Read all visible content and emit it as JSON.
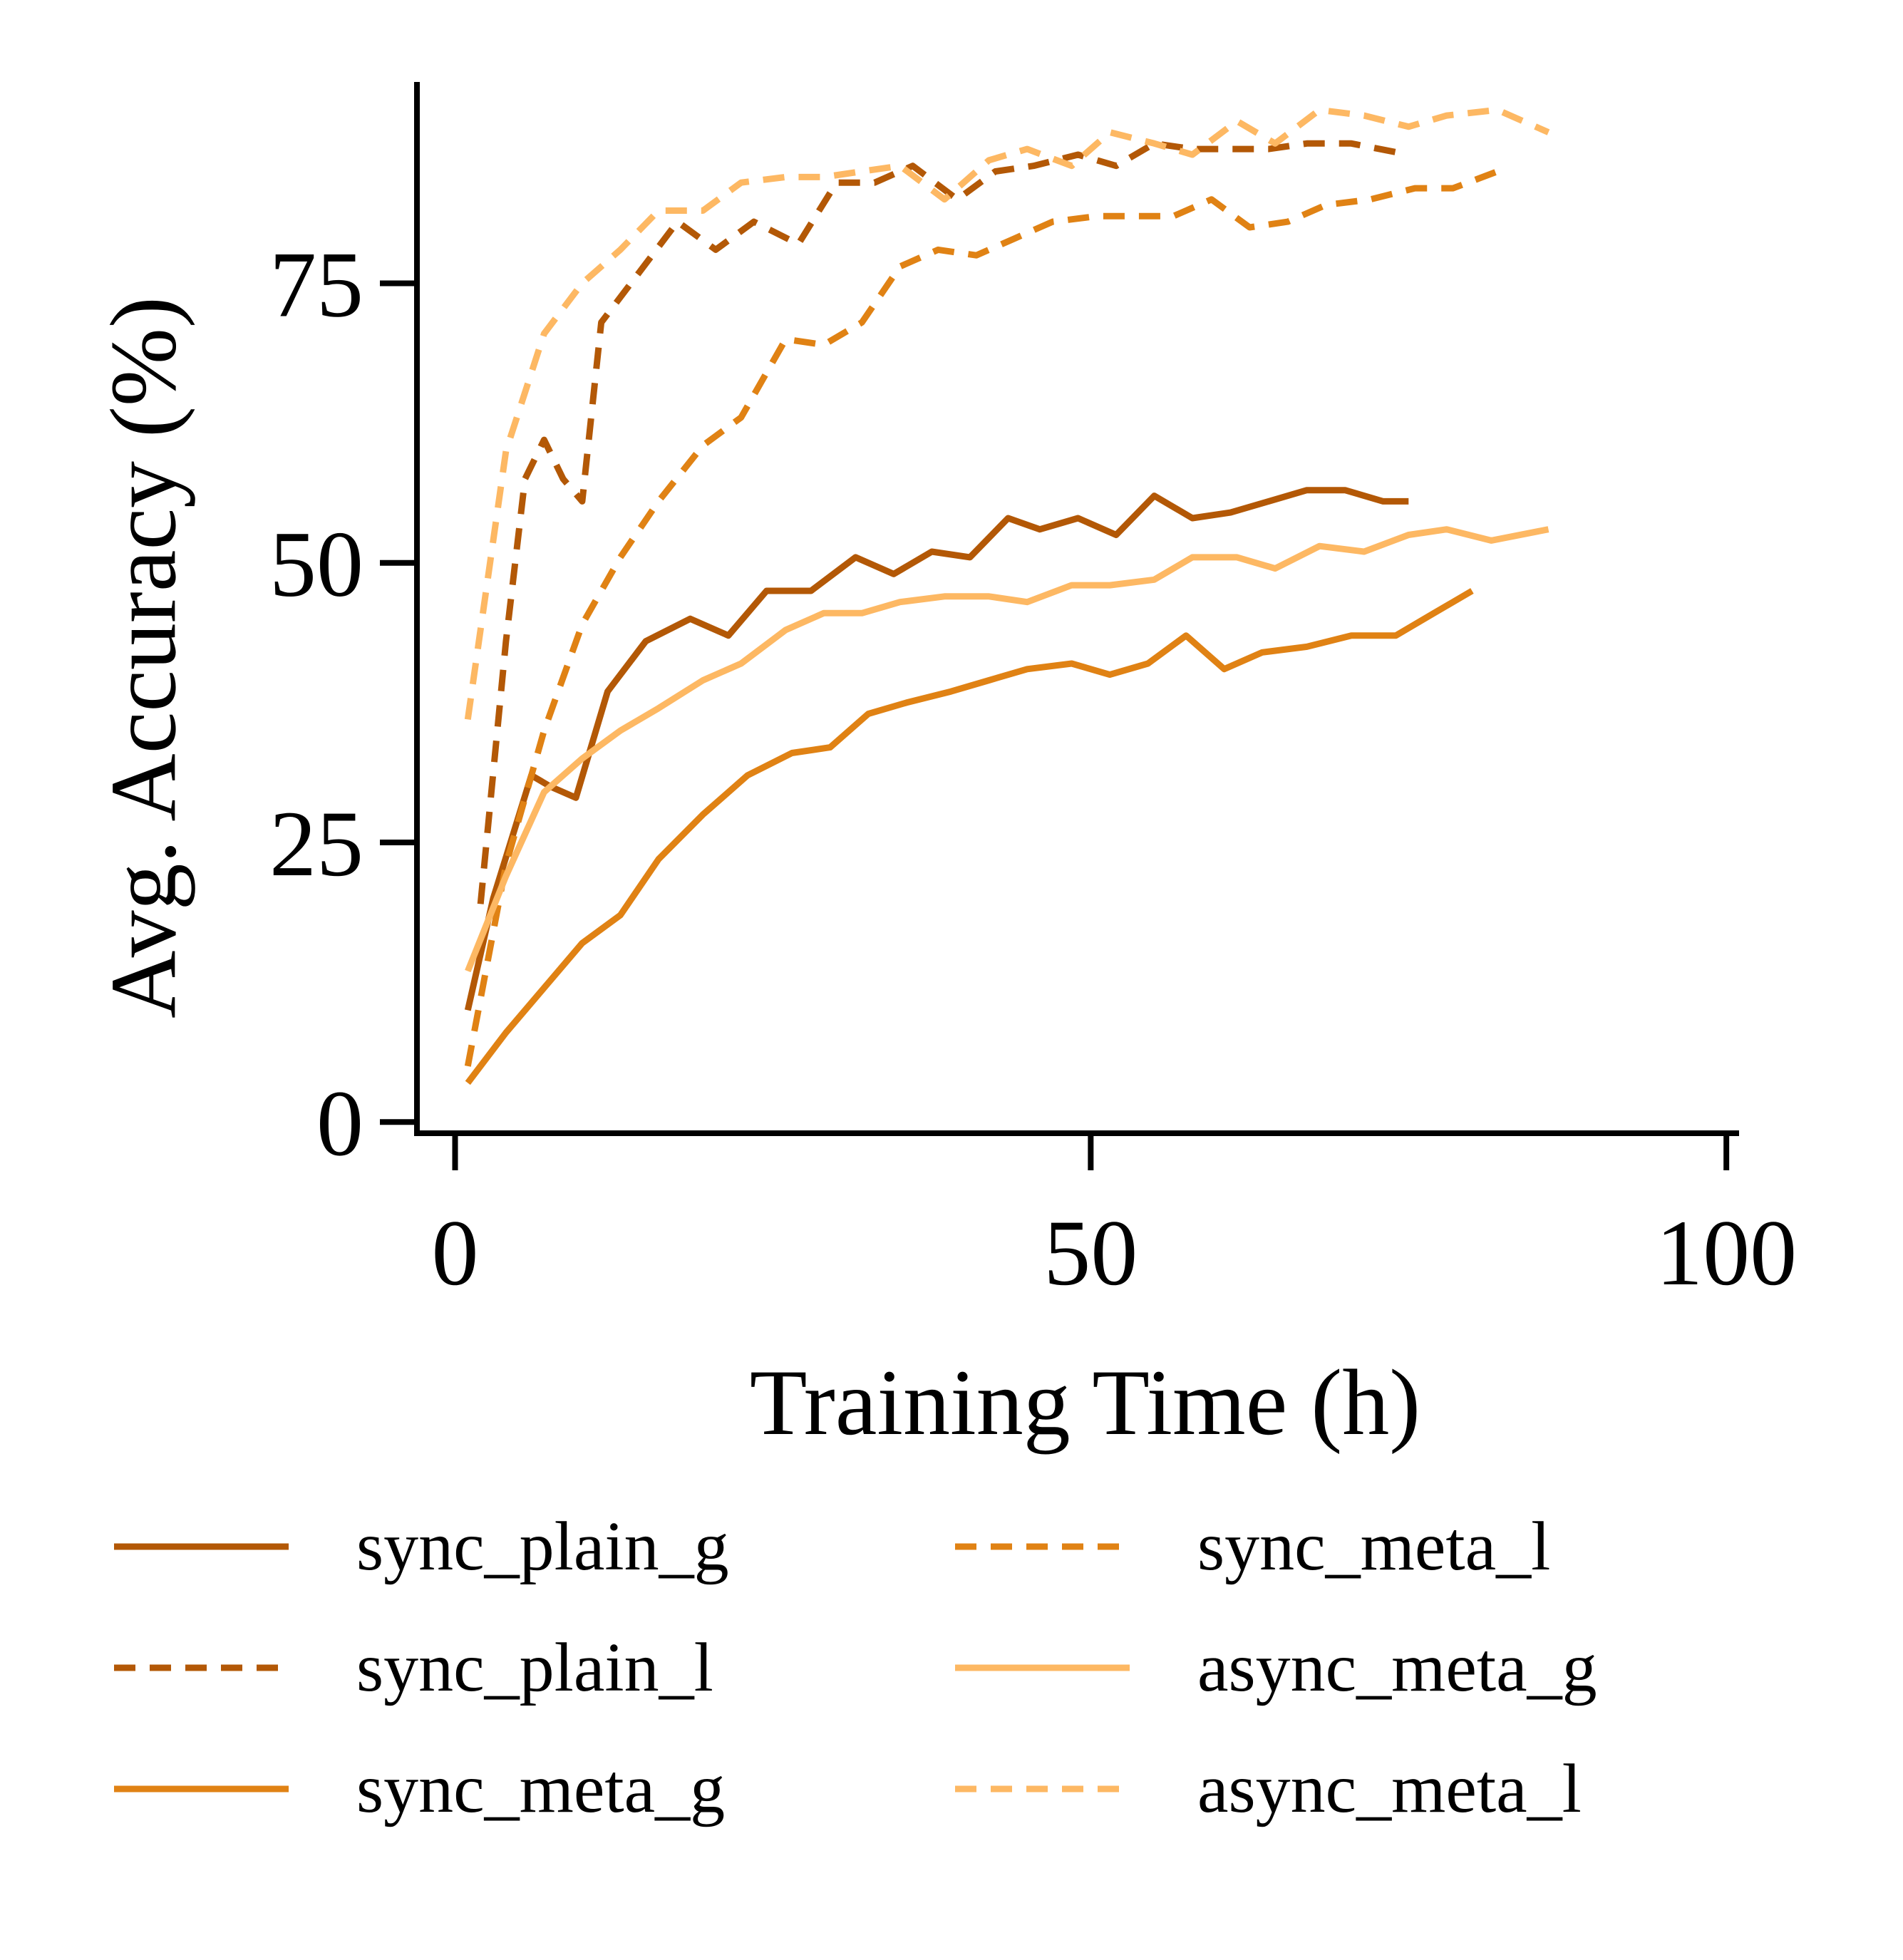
{
  "chart_data": {
    "type": "line",
    "title": "",
    "xlabel": "Training Time (h)",
    "ylabel": "Avg. Accuracy (%)",
    "xlim": [
      -3,
      101
    ],
    "ylim": [
      -1,
      93
    ],
    "xticks": [
      0,
      50,
      100
    ],
    "yticks": [
      0,
      25,
      50,
      75
    ],
    "grid": false,
    "legend_position": "bottom",
    "legend_columns": 2,
    "series": [
      {
        "name": "sync_plain_g",
        "color": "#b35806",
        "dash": "solid",
        "points": [
          [
            1,
            10
          ],
          [
            3,
            20
          ],
          [
            6,
            31
          ],
          [
            7.5,
            30
          ],
          [
            9.5,
            29
          ],
          [
            12,
            38.5
          ],
          [
            15,
            43
          ],
          [
            18.5,
            45
          ],
          [
            21.5,
            43.5
          ],
          [
            24.5,
            47.5
          ],
          [
            28,
            47.5
          ],
          [
            31.5,
            50.5
          ],
          [
            34.5,
            49
          ],
          [
            37.5,
            51
          ],
          [
            40.5,
            50.5
          ],
          [
            43.5,
            54
          ],
          [
            46,
            53
          ],
          [
            49,
            54
          ],
          [
            52,
            52.5
          ],
          [
            55,
            56
          ],
          [
            58,
            54
          ],
          [
            61,
            54.5
          ],
          [
            64,
            55.5
          ],
          [
            67,
            56.5
          ],
          [
            70,
            56.5
          ],
          [
            73,
            55.5
          ],
          [
            75,
            55.5
          ]
        ]
      },
      {
        "name": "sync_plain_l",
        "color": "#b35806",
        "dash": "dashed",
        "points": [
          [
            2,
            19.5
          ],
          [
            4,
            43
          ],
          [
            5.5,
            57.5
          ],
          [
            7,
            61
          ],
          [
            8.5,
            57.5
          ],
          [
            10,
            55.5
          ],
          [
            11.5,
            71.5
          ],
          [
            14.5,
            76
          ],
          [
            17.5,
            80.5
          ],
          [
            20.5,
            78
          ],
          [
            23.5,
            80.5
          ],
          [
            27,
            78.5
          ],
          [
            30,
            84
          ],
          [
            33,
            84
          ],
          [
            36,
            85.5
          ],
          [
            39.5,
            82.5
          ],
          [
            42.5,
            85
          ],
          [
            45.5,
            85.5
          ],
          [
            49,
            86.5
          ],
          [
            52,
            85.5
          ],
          [
            55,
            87.5
          ],
          [
            58,
            87
          ],
          [
            61,
            87
          ],
          [
            64,
            87
          ],
          [
            67,
            87.5
          ],
          [
            70.5,
            87.5
          ],
          [
            75,
            86.5
          ]
        ]
      },
      {
        "name": "sync_meta_g",
        "color": "#e08214",
        "dash": "solid",
        "points": [
          [
            1,
            3.5
          ],
          [
            4,
            8
          ],
          [
            7,
            12
          ],
          [
            10,
            16
          ],
          [
            13,
            18.5
          ],
          [
            16,
            23.5
          ],
          [
            19.5,
            27.5
          ],
          [
            23,
            31
          ],
          [
            26.5,
            33
          ],
          [
            29.5,
            33.5
          ],
          [
            32.5,
            36.5
          ],
          [
            35.5,
            37.5
          ],
          [
            39,
            38.5
          ],
          [
            42,
            39.5
          ],
          [
            45,
            40.5
          ],
          [
            48.5,
            41
          ],
          [
            51.5,
            40
          ],
          [
            54.5,
            41
          ],
          [
            57.5,
            43.5
          ],
          [
            60.5,
            40.5
          ],
          [
            63.5,
            42
          ],
          [
            67,
            42.5
          ],
          [
            70.5,
            43.5
          ],
          [
            74,
            43.5
          ],
          [
            77,
            45.5
          ],
          [
            80,
            47.5
          ]
        ]
      },
      {
        "name": "sync_meta_l",
        "color": "#e08214",
        "dash": "dashed",
        "points": [
          [
            1,
            5
          ],
          [
            4,
            23
          ],
          [
            7,
            35
          ],
          [
            10,
            44.5
          ],
          [
            13,
            50.5
          ],
          [
            16,
            55.5
          ],
          [
            19.5,
            60.5
          ],
          [
            22.5,
            63
          ],
          [
            26,
            70
          ],
          [
            29,
            69.5
          ],
          [
            32,
            71.5
          ],
          [
            35,
            76.5
          ],
          [
            38,
            78
          ],
          [
            41,
            77.5
          ],
          [
            44,
            79
          ],
          [
            47,
            80.5
          ],
          [
            50.5,
            81
          ],
          [
            53.5,
            81
          ],
          [
            56.5,
            81
          ],
          [
            59.5,
            82.5
          ],
          [
            62.5,
            80
          ],
          [
            65.5,
            80.5
          ],
          [
            68.5,
            82
          ],
          [
            72,
            82.5
          ],
          [
            75.5,
            83.5
          ],
          [
            78.5,
            83.5
          ],
          [
            82,
            85
          ]
        ]
      },
      {
        "name": "async_meta_g",
        "color": "#fdb863",
        "dash": "solid",
        "points": [
          [
            1,
            13.5
          ],
          [
            4,
            22
          ],
          [
            7,
            29.5
          ],
          [
            10,
            32.5
          ],
          [
            13,
            35
          ],
          [
            16,
            37
          ],
          [
            19.5,
            39.5
          ],
          [
            22.5,
            41
          ],
          [
            26,
            44
          ],
          [
            29,
            45.5
          ],
          [
            32,
            45.5
          ],
          [
            35,
            46.5
          ],
          [
            38.5,
            47
          ],
          [
            42,
            47
          ],
          [
            45,
            46.5
          ],
          [
            48.5,
            48
          ],
          [
            51.5,
            48
          ],
          [
            55,
            48.5
          ],
          [
            58,
            50.5
          ],
          [
            61.5,
            50.5
          ],
          [
            64.5,
            49.5
          ],
          [
            68,
            51.5
          ],
          [
            71.5,
            51
          ],
          [
            75,
            52.5
          ],
          [
            78,
            53
          ],
          [
            81.5,
            52
          ],
          [
            86,
            53
          ]
        ]
      },
      {
        "name": "async_meta_l",
        "color": "#fdb863",
        "dash": "dashed",
        "points": [
          [
            1,
            36
          ],
          [
            4,
            60
          ],
          [
            7,
            70.5
          ],
          [
            10,
            75
          ],
          [
            13,
            78
          ],
          [
            16,
            81.5
          ],
          [
            19.5,
            81.5
          ],
          [
            22.5,
            84
          ],
          [
            26,
            84.5
          ],
          [
            29,
            84.5
          ],
          [
            32,
            85
          ],
          [
            35,
            85.5
          ],
          [
            38.5,
            82.5
          ],
          [
            42,
            86
          ],
          [
            45,
            87
          ],
          [
            48.5,
            85.5
          ],
          [
            51.5,
            88.5
          ],
          [
            55,
            87.5
          ],
          [
            58,
            86.5
          ],
          [
            61.5,
            89.5
          ],
          [
            64.5,
            87.5
          ],
          [
            68,
            90.5
          ],
          [
            71.5,
            90
          ],
          [
            75,
            89
          ],
          [
            78,
            90
          ],
          [
            82,
            90.5
          ],
          [
            86,
            88.5
          ]
        ]
      }
    ]
  }
}
